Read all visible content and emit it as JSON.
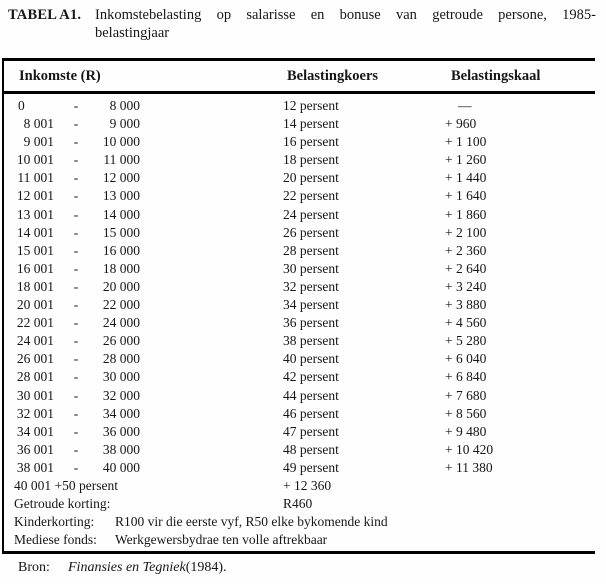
{
  "title": {
    "label": "TABEL A1.",
    "line1": "Inkomstebelasting op salarisse en bonuse van getroude persone, 1985-",
    "line2": "belastingjaar"
  },
  "table": {
    "col_headers": [
      "Inkomste (R)",
      "Belastingkoers",
      "Belastingskaal"
    ],
    "range_separator": "-",
    "rows": [
      {
        "low": "0",
        "high": "8 000",
        "rate": "12 persent",
        "scale": "—"
      },
      {
        "low": "8 001",
        "high": "9 000",
        "rate": "14 persent",
        "scale": "+ 960"
      },
      {
        "low": "9 001",
        "high": "10 000",
        "rate": "16 persent",
        "scale": "+ 1 100"
      },
      {
        "low": "10 001",
        "high": "11 000",
        "rate": "18 persent",
        "scale": "+ 1 260"
      },
      {
        "low": "11 001",
        "high": "12 000",
        "rate": "20 persent",
        "scale": "+ 1 440"
      },
      {
        "low": "12 001",
        "high": "13 000",
        "rate": "22 persent",
        "scale": "+ 1 640"
      },
      {
        "low": "13 001",
        "high": "14 000",
        "rate": "24 persent",
        "scale": "+ 1 860"
      },
      {
        "low": "14 001",
        "high": "15 000",
        "rate": "26 persent",
        "scale": "+ 2 100"
      },
      {
        "low": "15 001",
        "high": "16 000",
        "rate": "28 persent",
        "scale": "+ 2 360"
      },
      {
        "low": "16 001",
        "high": "18 000",
        "rate": "30 persent",
        "scale": "+ 2 640"
      },
      {
        "low": "18 001",
        "high": "20 000",
        "rate": "32 persent",
        "scale": "+ 3 240"
      },
      {
        "low": "20 001",
        "high": "22 000",
        "rate": "34 persent",
        "scale": "+ 3 880"
      },
      {
        "low": "22 001",
        "high": "24 000",
        "rate": "36 persent",
        "scale": "+ 4 560"
      },
      {
        "low": "24 001",
        "high": "26 000",
        "rate": "38 persent",
        "scale": "+ 5 280"
      },
      {
        "low": "26 001",
        "high": "28 000",
        "rate": "40 persent",
        "scale": "+ 6 040"
      },
      {
        "low": "28 001",
        "high": "30 000",
        "rate": "42 persent",
        "scale": "+ 6 840"
      },
      {
        "low": "30 001",
        "high": "32 000",
        "rate": "44 persent",
        "scale": "+ 7 680"
      },
      {
        "low": "32 001",
        "high": "34 000",
        "rate": "46 persent",
        "scale": "+ 8 560"
      },
      {
        "low": "34 001",
        "high": "36 000",
        "rate": "47 persent",
        "scale": "+ 9 480"
      },
      {
        "low": "36 001",
        "high": "38 000",
        "rate": "48 persent",
        "scale": "+ 10 420"
      },
      {
        "low": "38 001",
        "high": "40 000",
        "rate": "49 persent",
        "scale": "+ 11 380"
      }
    ],
    "summary_rows": [
      {
        "label": "40 001 +50 persent",
        "value": "+ 12 360"
      },
      {
        "label": "Getroude korting:",
        "value": "R460"
      },
      {
        "label": "Kinderkorting:",
        "value": "R100 vir die eerste vyf, R50 elke bykomende kind"
      },
      {
        "label": "Mediese fonds:",
        "value": "Werkgewersbydrae ten volle aftrekbaar"
      }
    ]
  },
  "source": {
    "label": "Bron:",
    "work": "Finansies en Tegniek",
    "suffix": "(1984)."
  }
}
